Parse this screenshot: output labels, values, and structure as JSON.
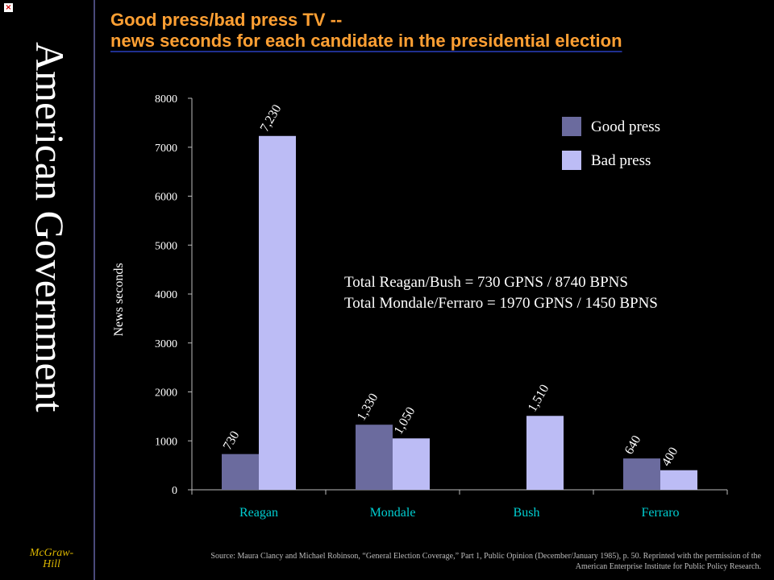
{
  "sidebar": {
    "vertical_title": "American Government",
    "publisher_line1": "McGraw-",
    "publisher_line2": "Hill",
    "close_glyph": "×"
  },
  "title_line1": "Good press/bad press TV --",
  "title_line2": "news seconds for each candidate in the presidential election",
  "note_line1": "Total Reagan/Bush = 730 GPNS  /  8740 BPNS",
  "note_line2": "Total Mondale/Ferraro = 1970 GPNS / 1450 BPNS",
  "source_text": "Source: Maura Clancy and Michael Robinson, “General Election Coverage,” Part 1, Public Opinion (December/January 1985), p. 50. Reprinted with the permission of the American Enterprise Institute for Public Policy Research.",
  "colors": {
    "good": "#6b6b9e",
    "bad": "#bcbcf5",
    "title": "#ffa033",
    "axis_text": "#00ced1",
    "tick_text": "#ffffff"
  },
  "chart_data": {
    "type": "bar",
    "title": "Good press/bad press TV -- news seconds for each candidate in the presidential election",
    "xlabel": "",
    "ylabel": "News seconds",
    "ylim": [
      0,
      8000
    ],
    "yticks": [
      0,
      1000,
      2000,
      3000,
      4000,
      5000,
      6000,
      7000,
      8000
    ],
    "categories": [
      "Reagan",
      "Mondale",
      "Bush",
      "Ferraro"
    ],
    "series": [
      {
        "name": "Good press",
        "values": [
          730,
          1330,
          null,
          640
        ],
        "labels": [
          "730",
          "1,330",
          "",
          "640"
        ]
      },
      {
        "name": "Bad press",
        "values": [
          7230,
          1050,
          1510,
          400
        ],
        "labels": [
          "7,230",
          "1,050",
          "1,510",
          "400"
        ]
      }
    ],
    "legend": "top-right",
    "grid": false
  }
}
